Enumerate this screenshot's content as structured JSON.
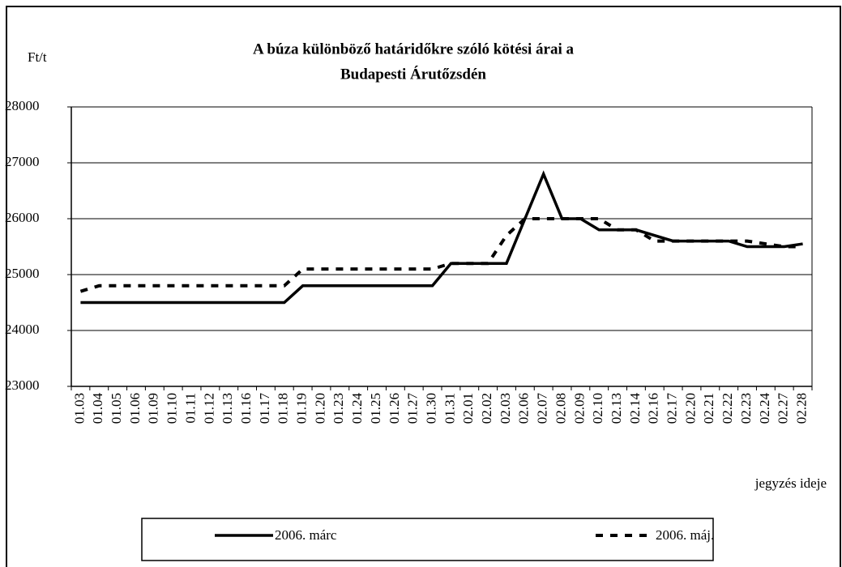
{
  "chart_data": {
    "type": "line",
    "title_lines": [
      "A búza különböző határidőkre szóló kötési árai a",
      "Budapesti Árutőzsdén"
    ],
    "y_label": "Ft/t",
    "x_label": "jegyzés ideje",
    "categories": [
      "01.03",
      "01.04",
      "01.05",
      "01.06",
      "01.09",
      "01.10",
      "01.11",
      "01.12",
      "01.13",
      "01.16",
      "01.17",
      "01.18",
      "01.19",
      "01.20",
      "01.23",
      "01.24",
      "01.25",
      "01.26",
      "01.27",
      "01.30",
      "01.31",
      "02.01",
      "02.02",
      "02.03",
      "02.06",
      "02.07",
      "02.08",
      "02.09",
      "02.10",
      "02.13",
      "02.14",
      "02.16",
      "02.17",
      "02.20",
      "02.21",
      "02.22",
      "02.23",
      "02.24",
      "02.27",
      "02.28"
    ],
    "series": [
      {
        "name": "2006. márc",
        "color": "#000000",
        "style": "solid",
        "values": [
          24500,
          24500,
          24500,
          24500,
          24500,
          24500,
          24500,
          24500,
          24500,
          24500,
          24500,
          24500,
          24800,
          24800,
          24800,
          24800,
          24800,
          24800,
          24800,
          24800,
          25200,
          25200,
          25200,
          25200,
          26000,
          26800,
          26000,
          26000,
          25800,
          25800,
          25800,
          25700,
          25600,
          25600,
          25600,
          25600,
          25500,
          25500,
          25500,
          25550
        ]
      },
      {
        "name": "2006. máj.",
        "color": "#000000",
        "style": "dashed",
        "values": [
          24700,
          24800,
          24800,
          24800,
          24800,
          24800,
          24800,
          24800,
          24800,
          24800,
          24800,
          24800,
          25100,
          25100,
          25100,
          25100,
          25100,
          25100,
          25100,
          25100,
          25200,
          25200,
          25200,
          25700,
          26000,
          26000,
          26000,
          26000,
          26000,
          25800,
          25800,
          25600,
          25600,
          25600,
          25600,
          25600,
          25600,
          25550,
          25500,
          25500
        ]
      }
    ],
    "ylim": [
      23000,
      28000
    ],
    "yticks": [
      23000,
      24000,
      25000,
      26000,
      27000,
      28000
    ],
    "grid": true
  }
}
